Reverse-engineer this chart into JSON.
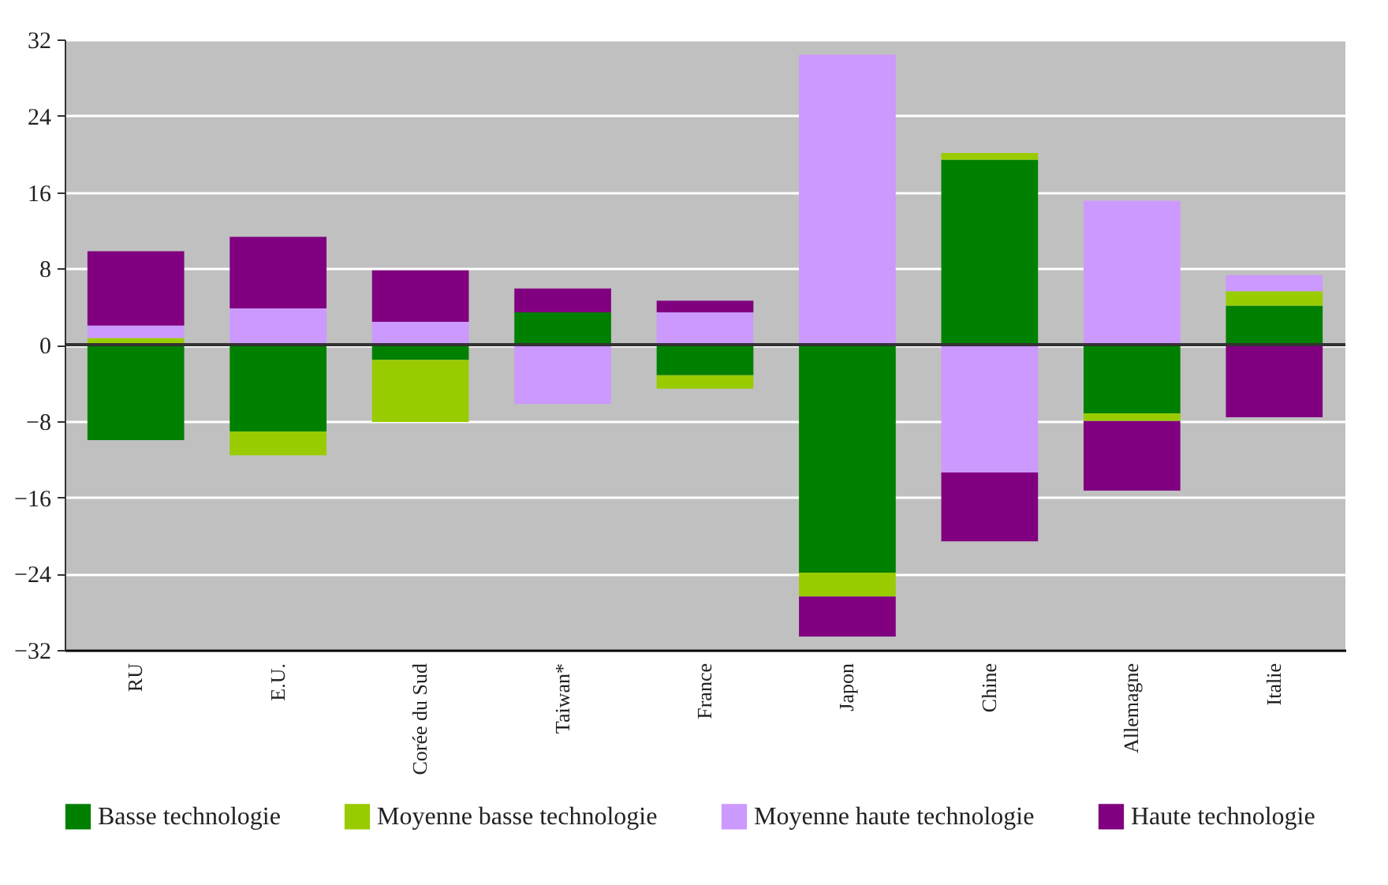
{
  "chart_data": {
    "type": "bar",
    "stacked": true,
    "categories": [
      "RU",
      "E.U.",
      "Corée du Sud",
      "Taiwan*",
      "France",
      "Japon",
      "Chine",
      "Allemagne",
      "Italie"
    ],
    "series": [
      {
        "name": "Basse technologie",
        "color": "#008000",
        "values": [
          -10.0,
          -9.1,
          -1.6,
          3.4,
          -3.2,
          -23.9,
          19.4,
          -7.2,
          4.1
        ]
      },
      {
        "name": "Moyenne basse technologie",
        "color": "#99cc00",
        "values": [
          0.7,
          -2.5,
          -6.5,
          null,
          -1.4,
          -2.5,
          0.7,
          -0.8,
          1.5
        ]
      },
      {
        "name": "Moyenne haute technologie",
        "color": "#cc99ff",
        "values": [
          1.3,
          3.8,
          2.4,
          -6.2,
          3.4,
          30.4,
          -13.4,
          15.1,
          1.7
        ]
      },
      {
        "name": "Haute technologie",
        "color": "#800080",
        "values": [
          7.8,
          7.5,
          5.4,
          2.5,
          1.2,
          -4.2,
          -7.2,
          -7.3,
          -7.6
        ]
      }
    ],
    "ylim": [
      -32,
      32
    ],
    "yticks": [
      -32,
      -24,
      -16,
      -8,
      0,
      8,
      16,
      24,
      32
    ],
    "ref_lines": [
      {
        "axis": "y",
        "value": 0,
        "color": "#333333"
      }
    ],
    "grid": "y",
    "legend": "bottom"
  }
}
